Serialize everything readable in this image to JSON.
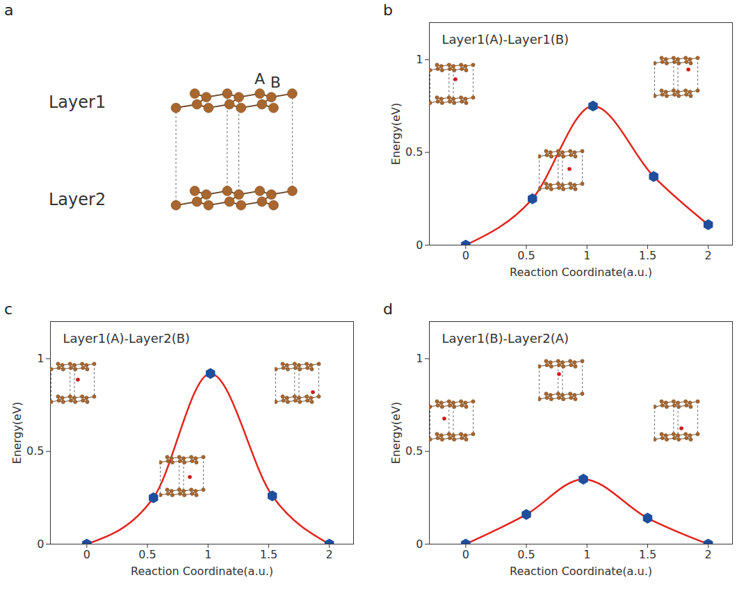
{
  "diagram": {
    "panel": "a",
    "layers": [
      "Layer1",
      "Layer2"
    ],
    "sites": [
      "A",
      "B"
    ]
  },
  "chart_data": [
    {
      "type": "line",
      "panel": "b",
      "title": "Layer1(A)-Layer1(B)",
      "x_label": "Reaction Coordinate(a.u.)",
      "y_label": "Energy(eV)",
      "x": [
        0,
        0.55,
        1.05,
        1.55,
        2.0
      ],
      "series": [
        {
          "color": "#e3231c",
          "marker": "hexagon",
          "values": [
            0,
            0.25,
            0.75,
            0.37,
            0.11
          ]
        }
      ],
      "xlim": [
        -0.3,
        2.2
      ],
      "xticks": [
        0,
        0.5,
        1,
        1.5,
        2
      ],
      "ylim": [
        0,
        1.2
      ],
      "yticks": [
        0,
        0.5,
        1
      ],
      "grid": false
    },
    {
      "type": "line",
      "panel": "c",
      "title": "Layer1(A)-Layer2(B)",
      "x_label": "Reaction Coordinate(a.u.)",
      "y_label": "Energy(eV)",
      "x": [
        0,
        0.55,
        1.02,
        1.53,
        2.0
      ],
      "series": [
        {
          "color": "#e3231c",
          "marker": "hexagon",
          "values": [
            0,
            0.25,
            0.92,
            0.26,
            0
          ]
        }
      ],
      "xlim": [
        -0.3,
        2.2
      ],
      "xticks": [
        0,
        0.5,
        1,
        1.5,
        2
      ],
      "ylim": [
        0,
        1.2
      ],
      "yticks": [
        0,
        0.5,
        1
      ],
      "grid": false
    },
    {
      "type": "line",
      "panel": "d",
      "title": "Layer1(B)-Layer2(A)",
      "x_label": "Reaction Coordinate(a.u.)",
      "y_label": "Energy(eV)",
      "x": [
        0,
        0.5,
        0.97,
        1.5,
        2.0
      ],
      "series": [
        {
          "color": "#e3231c",
          "marker": "hexagon",
          "values": [
            0,
            0.16,
            0.35,
            0.14,
            0
          ]
        }
      ],
      "xlim": [
        -0.3,
        2.2
      ],
      "xticks": [
        0,
        0.5,
        1,
        1.5,
        2
      ],
      "ylim": [
        0,
        1.2
      ],
      "yticks": [
        0,
        0.5,
        1
      ],
      "grid": false
    }
  ]
}
